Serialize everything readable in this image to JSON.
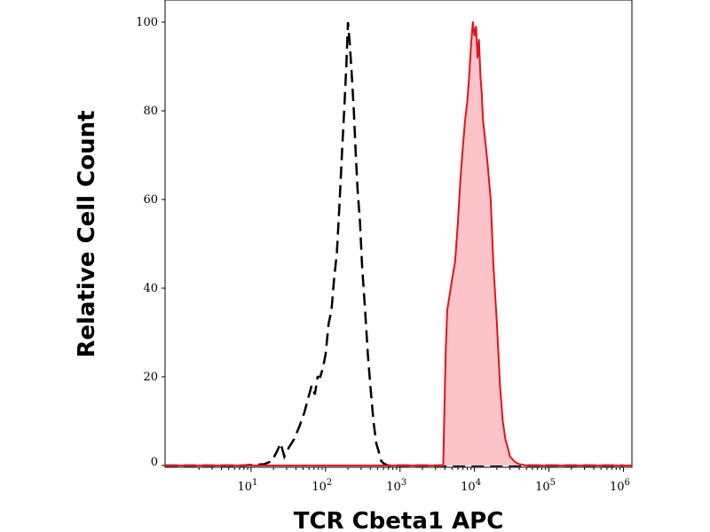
{
  "chart_data": {
    "type": "area",
    "xlabel": "TCR Cbeta1 APC",
    "ylabel": "Relative Cell Count",
    "x_scale": "log",
    "xlim": [
      0.7,
      1300000
    ],
    "ylim": [
      0,
      100
    ],
    "x_ticks": [
      {
        "base": "10",
        "exp": "1",
        "value": 10
      },
      {
        "base": "10",
        "exp": "2",
        "value": 100
      },
      {
        "base": "10",
        "exp": "3",
        "value": 1000
      },
      {
        "base": "10",
        "exp": "4",
        "value": 10000
      },
      {
        "base": "10",
        "exp": "5",
        "value": 100000
      },
      {
        "base": "10",
        "exp": "6",
        "value": 1000000
      }
    ],
    "y_ticks": [
      {
        "label": "0",
        "value": 0
      },
      {
        "label": "20",
        "value": 20
      },
      {
        "label": "40",
        "value": 40
      },
      {
        "label": "60",
        "value": 60
      },
      {
        "label": "80",
        "value": 80
      },
      {
        "label": "100",
        "value": 100
      }
    ],
    "grid": false,
    "colors": {
      "control": "#000000",
      "stained_line": "#e8101a",
      "stained_fill": "#fcc4c8"
    },
    "series": [
      {
        "style": "dashed",
        "x": [
          0.7,
          8,
          15,
          19,
          22,
          25,
          28,
          32,
          38,
          45,
          52,
          58,
          65,
          72,
          78,
          85,
          92,
          100,
          110,
          120,
          130,
          142,
          155,
          168,
          178,
          190,
          200,
          212,
          225,
          240,
          255,
          270,
          290,
          310,
          340,
          370,
          400,
          440,
          480,
          520,
          560,
          600,
          650,
          700,
          1000000
        ],
        "y": [
          0,
          0,
          0.3,
          1,
          3,
          5,
          2,
          4,
          6,
          9,
          12,
          15,
          18,
          16,
          20,
          20,
          22,
          25,
          32,
          35,
          42,
          48,
          60,
          72,
          80,
          90,
          100,
          95,
          88,
          80,
          70,
          62,
          55,
          45,
          35,
          25,
          18,
          10,
          5,
          3,
          1,
          0.5,
          0.2,
          0,
          0
        ]
      },
      {
        "style": "filled",
        "x": [
          0.7,
          3800,
          4100,
          4300,
          4600,
          5000,
          5500,
          6000,
          6500,
          7000,
          7500,
          8000,
          8500,
          9000,
          9500,
          10000,
          10500,
          11000,
          11500,
          12000,
          12500,
          13000,
          14000,
          15000,
          16500,
          18000,
          20000,
          22000,
          24000,
          26000,
          28000,
          30000,
          32000,
          35000,
          40000,
          50000,
          1300000
        ],
        "y": [
          0,
          0,
          25,
          35,
          38,
          42,
          46,
          55,
          65,
          72,
          78,
          82,
          88,
          95,
          100,
          97,
          99,
          92,
          96,
          88,
          84,
          78,
          73,
          68,
          60,
          45,
          32,
          18,
          10,
          6,
          4,
          2,
          1.5,
          0.8,
          0.3,
          0,
          0
        ]
      }
    ]
  }
}
